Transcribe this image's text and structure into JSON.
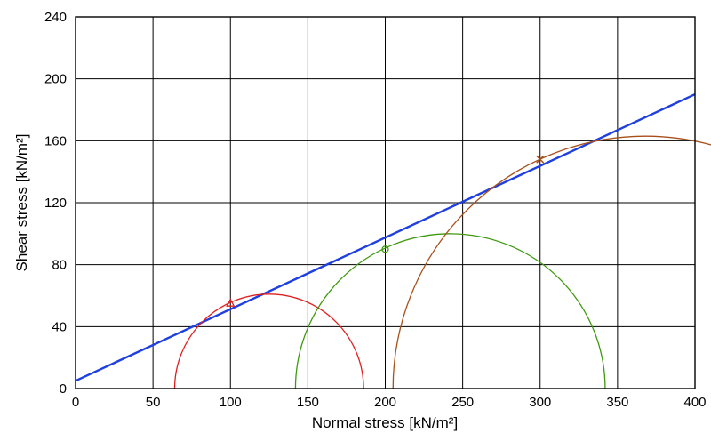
{
  "chart_data": {
    "type": "line",
    "title": "",
    "xlabel": "Normal stress [kN/m²]",
    "ylabel": "Shear stress [kN/m²]",
    "xlim": [
      0,
      400
    ],
    "ylim": [
      0,
      240
    ],
    "xticks": [
      0,
      50,
      100,
      150,
      200,
      250,
      300,
      350,
      400
    ],
    "yticks": [
      0,
      40,
      80,
      120,
      160,
      200,
      240
    ],
    "grid": true,
    "legend": "none",
    "series": [
      {
        "kind": "failure-envelope",
        "color": "#1f3fe0",
        "x": [
          0,
          400
        ],
        "y": [
          5,
          190
        ]
      },
      {
        "kind": "mohr-circle",
        "color": "#e02020",
        "center": 125,
        "radius": 61,
        "marker": {
          "shape": "triangle",
          "x": 100,
          "y": 55
        }
      },
      {
        "kind": "mohr-circle",
        "color": "#3f9a10",
        "center": 242,
        "radius": 100,
        "marker": {
          "shape": "circle",
          "x": 200,
          "y": 90
        }
      },
      {
        "kind": "mohr-circle",
        "color": "#a8501a",
        "center": 368,
        "radius": 163,
        "marker": {
          "shape": "cross",
          "x": 300,
          "y": 148
        }
      }
    ]
  }
}
